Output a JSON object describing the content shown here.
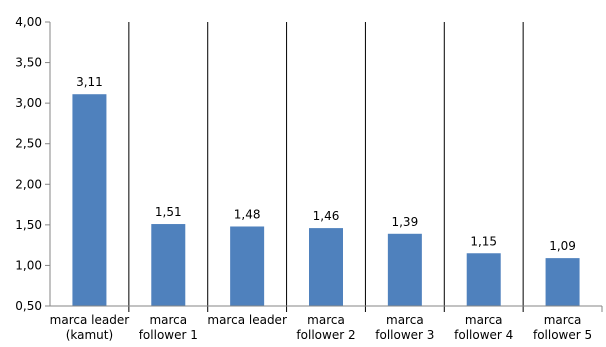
{
  "chart_data": {
    "type": "bar",
    "categories": [
      [
        "marca leader",
        "(kamut)"
      ],
      [
        "marca",
        "follower 1"
      ],
      [
        "marca leader"
      ],
      [
        "marca",
        "follower 2"
      ],
      [
        "marca",
        "follower 3"
      ],
      [
        "marca",
        "follower 4"
      ],
      [
        "marca",
        "follower 5"
      ]
    ],
    "values": [
      3.11,
      1.51,
      1.48,
      1.46,
      1.39,
      1.15,
      1.09
    ],
    "value_labels": [
      "3,11",
      "1,51",
      "1,48",
      "1,46",
      "1,39",
      "1,15",
      "1,09"
    ],
    "ylim": [
      0.5,
      4.0
    ],
    "yticks": [
      0.5,
      1.0,
      1.5,
      2.0,
      2.5,
      3.0,
      3.5,
      4.0
    ],
    "ytick_labels": [
      "0,50",
      "1,00",
      "1,50",
      "2,00",
      "2,50",
      "3,00",
      "3,50",
      "4,00"
    ],
    "separator_after": [
      1,
      2,
      3,
      4,
      5,
      6
    ],
    "colors": {
      "bar": "#4f81bd",
      "separator": "#000000",
      "axis": "#868686"
    },
    "grid": false,
    "legend": "none"
  }
}
